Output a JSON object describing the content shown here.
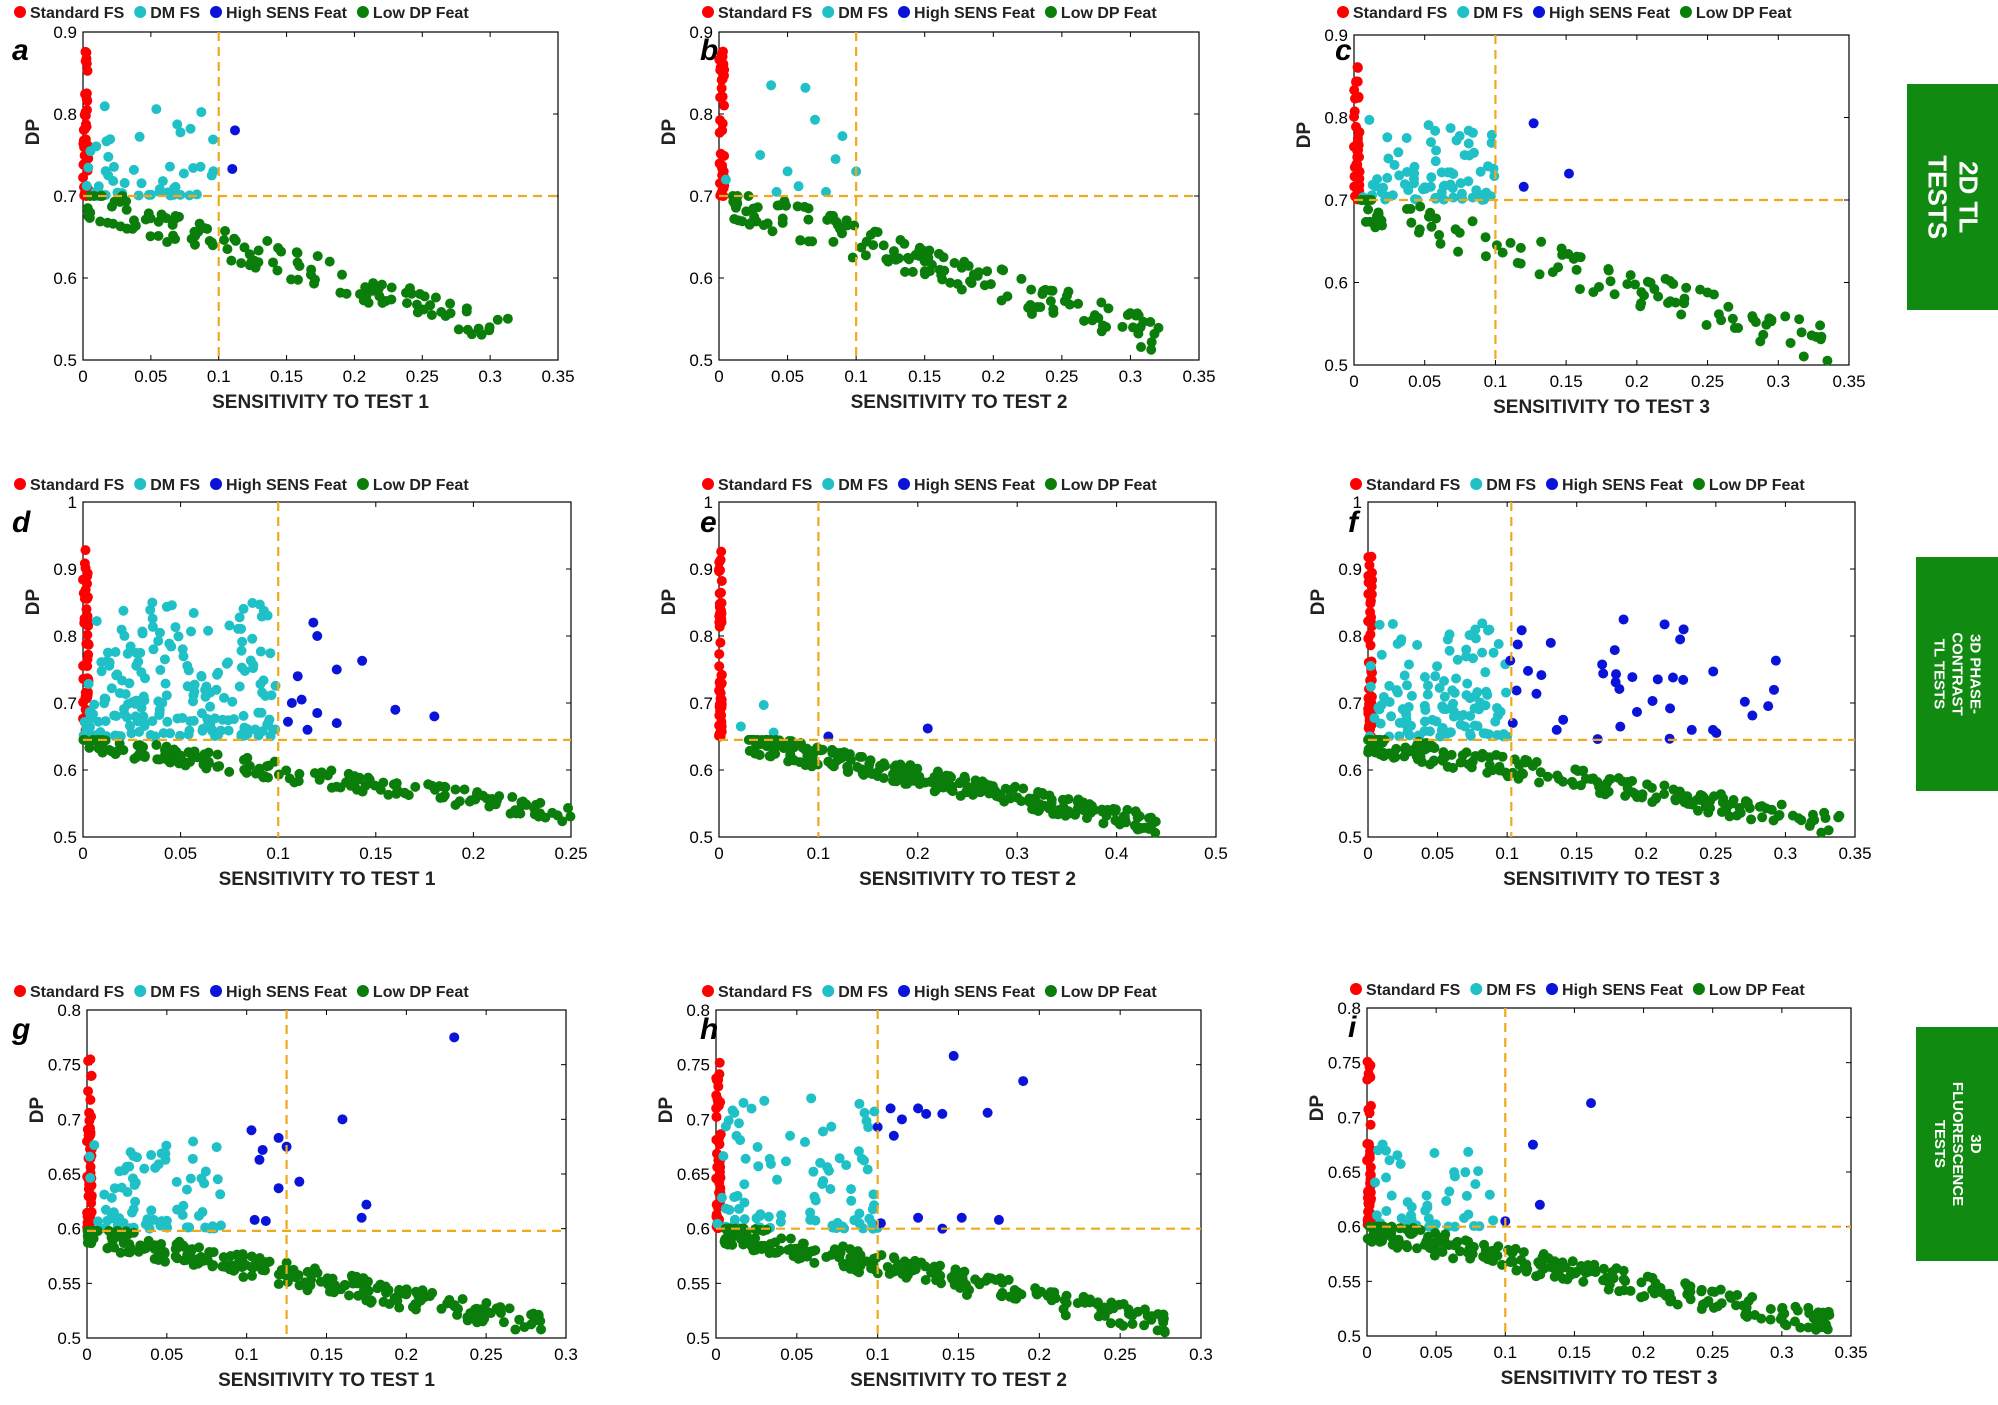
{
  "colors": {
    "standard_fs": "#ff0000",
    "dm_fs": "#1fc0c6",
    "high_sens": "#0a14d8",
    "low_dp": "#0a7d0a",
    "threshold": "#f0a91c",
    "row_label_bg": "#118a11"
  },
  "legend": {
    "standard": "Standard FS",
    "dm": "DM FS",
    "high": "High SENS Feat",
    "low": "Low DP Feat"
  },
  "row_labels": [
    {
      "text": "2D TL TESTS"
    },
    {
      "text": "3D PHASE-CONTRAST TL TESTS"
    },
    {
      "text": "3D FLUORESCENCE TESTS"
    }
  ],
  "chart_data": [
    {
      "id": "a",
      "type": "scatter",
      "title": "a",
      "xlabel": "SENSITIVITY TO TEST 1",
      "ylabel": "DP",
      "xlim": [
        0,
        0.35
      ],
      "ylim": [
        0.5,
        0.9
      ],
      "xticks": [
        "0",
        "0.05",
        "0.1",
        "0.15",
        "0.2",
        "0.25",
        "0.3",
        "0.35"
      ],
      "yticks": [
        "0.5",
        "0.6",
        "0.7",
        "0.8",
        "0.9"
      ],
      "threshold_x": 0.1,
      "threshold_y": 0.7,
      "series": [
        {
          "name": "Standard FS",
          "color": "#ff0000",
          "approx_count": 40,
          "x_range": [
            0,
            0.004
          ],
          "y_range": [
            0.7,
            0.88
          ]
        },
        {
          "name": "DM FS",
          "color": "#1fc0c6",
          "approx_count": 50,
          "x_range": [
            0,
            0.1
          ],
          "y_range": [
            0.7,
            0.815
          ]
        },
        {
          "name": "High SENS Feat",
          "color": "#0a14d8",
          "points": [
            [
              0.112,
              0.78
            ],
            [
              0.11,
              0.733
            ]
          ]
        },
        {
          "name": "Low DP Feat",
          "color": "#0a7d0a",
          "approx_count": 130,
          "x_range": [
            0.002,
            0.315
          ],
          "y_range": [
            0.515,
            0.7
          ]
        }
      ]
    },
    {
      "id": "b",
      "type": "scatter",
      "title": "b",
      "xlabel": "SENSITIVITY TO TEST 2",
      "ylabel": "DP",
      "xlim": [
        0,
        0.35
      ],
      "ylim": [
        0.5,
        0.9
      ],
      "xticks": [
        "0",
        "0.05",
        "0.1",
        "0.15",
        "0.2",
        "0.25",
        "0.3",
        "0.35"
      ],
      "yticks": [
        "0.5",
        "0.6",
        "0.7",
        "0.8",
        "0.9"
      ],
      "threshold_x": 0.1,
      "threshold_y": 0.7,
      "series": [
        {
          "name": "Standard FS",
          "color": "#ff0000",
          "approx_count": 40,
          "x_range": [
            0,
            0.004
          ],
          "y_range": [
            0.7,
            0.88
          ]
        },
        {
          "name": "DM FS",
          "color": "#1fc0c6",
          "points": [
            [
              0.038,
              0.835
            ],
            [
              0.063,
              0.832
            ],
            [
              0.07,
              0.793
            ],
            [
              0.09,
              0.773
            ],
            [
              0.03,
              0.75
            ],
            [
              0.05,
              0.73
            ],
            [
              0.085,
              0.745
            ],
            [
              0.005,
              0.72
            ],
            [
              0.1,
              0.73
            ],
            [
              0.058,
              0.712
            ],
            [
              0.042,
              0.705
            ],
            [
              0.078,
              0.705
            ]
          ]
        },
        {
          "name": "Low DP Feat",
          "color": "#0a7d0a",
          "approx_count": 150,
          "x_range": [
            0.01,
            0.33
          ],
          "y_range": [
            0.5,
            0.7
          ]
        }
      ]
    },
    {
      "id": "c",
      "type": "scatter",
      "title": "c",
      "xlabel": "SENSITIVITY TO TEST 3",
      "ylabel": "DP",
      "xlim": [
        0,
        0.35
      ],
      "ylim": [
        0.5,
        0.9
      ],
      "xticks": [
        "0",
        "0.05",
        "0.1",
        "0.15",
        "0.2",
        "0.25",
        "0.3",
        "0.35"
      ],
      "yticks": [
        "0.5",
        "0.6",
        "0.7",
        "0.8",
        "0.9"
      ],
      "threshold_x": 0.1,
      "threshold_y": 0.7,
      "series": [
        {
          "name": "Standard FS",
          "color": "#ff0000",
          "approx_count": 40,
          "x_range": [
            0,
            0.004
          ],
          "y_range": [
            0.7,
            0.88
          ]
        },
        {
          "name": "DM FS",
          "color": "#1fc0c6",
          "approx_count": 80,
          "x_range": [
            0.003,
            0.1
          ],
          "y_range": [
            0.7,
            0.8
          ]
        },
        {
          "name": "High SENS Feat",
          "color": "#0a14d8",
          "points": [
            [
              0.127,
              0.793
            ],
            [
              0.152,
              0.732
            ],
            [
              0.12,
              0.716
            ]
          ]
        },
        {
          "name": "Low DP Feat",
          "color": "#0a7d0a",
          "approx_count": 110,
          "x_range": [
            0.005,
            0.335
          ],
          "y_range": [
            0.5,
            0.7
          ]
        }
      ]
    },
    {
      "id": "d",
      "type": "scatter",
      "title": "d",
      "xlabel": "SENSITIVITY TO TEST 1",
      "ylabel": "DP",
      "xlim": [
        0,
        0.25
      ],
      "ylim": [
        0.5,
        1.0
      ],
      "xticks": [
        "0",
        "0.05",
        "0.1",
        "0.15",
        "0.2",
        "0.25"
      ],
      "yticks": [
        "0.5",
        "0.6",
        "0.7",
        "0.8",
        "0.9",
        "1"
      ],
      "threshold_x": 0.1,
      "threshold_y": 0.645,
      "series": [
        {
          "name": "Standard FS",
          "color": "#ff0000",
          "approx_count": 60,
          "x_range": [
            0,
            0.003
          ],
          "y_range": [
            0.65,
            0.93
          ]
        },
        {
          "name": "DM FS",
          "color": "#1fc0c6",
          "approx_count": 200,
          "x_range": [
            0,
            0.1
          ],
          "y_range": [
            0.65,
            0.85
          ]
        },
        {
          "name": "High SENS Feat",
          "color": "#0a14d8",
          "points": [
            [
              0.118,
              0.82
            ],
            [
              0.12,
              0.8
            ],
            [
              0.13,
              0.75
            ],
            [
              0.11,
              0.74
            ],
            [
              0.143,
              0.763
            ],
            [
              0.16,
              0.69
            ],
            [
              0.18,
              0.68
            ],
            [
              0.107,
              0.7
            ],
            [
              0.12,
              0.685
            ],
            [
              0.112,
              0.705
            ],
            [
              0.105,
              0.672
            ],
            [
              0.13,
              0.67
            ],
            [
              0.115,
              0.66
            ]
          ]
        },
        {
          "name": "Low DP Feat",
          "color": "#0a7d0a",
          "approx_count": 170,
          "x_range": [
            0,
            0.25
          ],
          "y_range": [
            0.52,
            0.645
          ]
        }
      ]
    },
    {
      "id": "e",
      "type": "scatter",
      "title": "e",
      "xlabel": "SENSITIVITY TO TEST 2",
      "ylabel": "DP",
      "xlim": [
        0,
        0.5
      ],
      "ylim": [
        0.5,
        1.0
      ],
      "xticks": [
        "0",
        "0.1",
        "0.2",
        "0.3",
        "0.4",
        "0.5"
      ],
      "yticks": [
        "0.5",
        "0.6",
        "0.7",
        "0.8",
        "0.9",
        "1"
      ],
      "threshold_x": 0.1,
      "threshold_y": 0.645,
      "series": [
        {
          "name": "Standard FS",
          "color": "#ff0000",
          "approx_count": 60,
          "x_range": [
            0,
            0.003
          ],
          "y_range": [
            0.65,
            0.93
          ]
        },
        {
          "name": "DM FS",
          "color": "#1fc0c6",
          "points": [
            [
              0.045,
              0.697
            ],
            [
              0.022,
              0.665
            ],
            [
              0.055,
              0.656
            ]
          ]
        },
        {
          "name": "High SENS Feat",
          "color": "#0a14d8",
          "points": [
            [
              0.21,
              0.662
            ],
            [
              0.11,
              0.65
            ]
          ]
        },
        {
          "name": "Low DP Feat",
          "color": "#0a7d0a",
          "approx_count": 280,
          "x_range": [
            0.03,
            0.44
          ],
          "y_range": [
            0.5,
            0.645
          ]
        }
      ]
    },
    {
      "id": "f",
      "type": "scatter",
      "title": "f",
      "xlabel": "SENSITIVITY TO TEST 3",
      "ylabel": "DP",
      "xlim": [
        0,
        0.35
      ],
      "ylim": [
        0.5,
        1.0
      ],
      "xticks": [
        "0",
        "0.05",
        "0.1",
        "0.15",
        "0.2",
        "0.25",
        "0.3",
        "0.35"
      ],
      "yticks": [
        "0.5",
        "0.6",
        "0.7",
        "0.8",
        "0.9",
        "1"
      ],
      "threshold_x": 0.103,
      "threshold_y": 0.645,
      "series": [
        {
          "name": "Standard FS",
          "color": "#ff0000",
          "approx_count": 60,
          "x_range": [
            0,
            0.003
          ],
          "y_range": [
            0.65,
            0.93
          ]
        },
        {
          "name": "DM FS",
          "color": "#1fc0c6",
          "approx_count": 120,
          "x_range": [
            0,
            0.1
          ],
          "y_range": [
            0.65,
            0.82
          ]
        },
        {
          "name": "High SENS Feat",
          "color": "#0a14d8",
          "approx_count": 40,
          "x_range": [
            0.1,
            0.3
          ],
          "y_range": [
            0.645,
            0.825
          ]
        },
        {
          "name": "Low DP Feat",
          "color": "#0a7d0a",
          "approx_count": 200,
          "x_range": [
            0,
            0.34
          ],
          "y_range": [
            0.5,
            0.645
          ]
        }
      ]
    },
    {
      "id": "g",
      "type": "scatter",
      "title": "g",
      "xlabel": "SENSITIVITY TO TEST 1",
      "ylabel": "DP",
      "xlim": [
        0,
        0.3
      ],
      "ylim": [
        0.5,
        0.8
      ],
      "xticks": [
        "0",
        "0.05",
        "0.1",
        "0.15",
        "0.2",
        "0.25",
        "0.3"
      ],
      "yticks": [
        "0.5",
        "0.55",
        "0.6",
        "0.65",
        "0.7",
        "0.75",
        "0.8"
      ],
      "threshold_x": 0.125,
      "threshold_y": 0.598,
      "series": [
        {
          "name": "Standard FS",
          "color": "#ff0000",
          "approx_count": 50,
          "x_range": [
            0,
            0.003
          ],
          "y_range": [
            0.6,
            0.755
          ]
        },
        {
          "name": "DM FS",
          "color": "#1fc0c6",
          "approx_count": 80,
          "x_range": [
            0,
            0.085
          ],
          "y_range": [
            0.6,
            0.68
          ]
        },
        {
          "name": "High SENS Feat",
          "color": "#0a14d8",
          "points": [
            [
              0.23,
              0.775
            ],
            [
              0.16,
              0.7
            ],
            [
              0.103,
              0.69
            ],
            [
              0.12,
              0.683
            ],
            [
              0.11,
              0.672
            ],
            [
              0.125,
              0.675
            ],
            [
              0.108,
              0.663
            ],
            [
              0.133,
              0.643
            ],
            [
              0.12,
              0.637
            ],
            [
              0.175,
              0.622
            ],
            [
              0.172,
              0.61
            ],
            [
              0.105,
              0.608
            ],
            [
              0.112,
              0.607
            ]
          ]
        },
        {
          "name": "Low DP Feat",
          "color": "#0a7d0a",
          "approx_count": 240,
          "x_range": [
            0,
            0.285
          ],
          "y_range": [
            0.5,
            0.598
          ]
        }
      ]
    },
    {
      "id": "h",
      "type": "scatter",
      "title": "h",
      "xlabel": "SENSITIVITY TO TEST 2",
      "ylabel": "DP",
      "xlim": [
        0,
        0.3
      ],
      "ylim": [
        0.5,
        0.8
      ],
      "xticks": [
        "0",
        "0.05",
        "0.1",
        "0.15",
        "0.2",
        "0.25",
        "0.3"
      ],
      "yticks": [
        "0.5",
        "0.55",
        "0.6",
        "0.65",
        "0.7",
        "0.75",
        "0.8"
      ],
      "threshold_x": 0.1,
      "threshold_y": 0.6,
      "series": [
        {
          "name": "Standard FS",
          "color": "#ff0000",
          "approx_count": 50,
          "x_range": [
            0,
            0.003
          ],
          "y_range": [
            0.6,
            0.755
          ]
        },
        {
          "name": "DM FS",
          "color": "#1fc0c6",
          "approx_count": 90,
          "x_range": [
            0,
            0.1
          ],
          "y_range": [
            0.6,
            0.72
          ]
        },
        {
          "name": "High SENS Feat",
          "color": "#0a14d8",
          "points": [
            [
              0.147,
              0.758
            ],
            [
              0.19,
              0.735
            ],
            [
              0.1,
              0.693
            ],
            [
              0.115,
              0.7
            ],
            [
              0.108,
              0.71
            ],
            [
              0.125,
              0.71
            ],
            [
              0.13,
              0.705
            ],
            [
              0.11,
              0.685
            ],
            [
              0.14,
              0.705
            ],
            [
              0.168,
              0.706
            ],
            [
              0.102,
              0.605
            ],
            [
              0.125,
              0.61
            ],
            [
              0.152,
              0.61
            ],
            [
              0.175,
              0.608
            ],
            [
              0.14,
              0.6
            ]
          ]
        },
        {
          "name": "Low DP Feat",
          "color": "#0a7d0a",
          "approx_count": 240,
          "x_range": [
            0.005,
            0.28
          ],
          "y_range": [
            0.5,
            0.6
          ]
        }
      ]
    },
    {
      "id": "i",
      "type": "scatter",
      "title": "i",
      "xlabel": "SENSITIVITY TO TEST 3",
      "ylabel": "DP",
      "xlim": [
        0,
        0.35
      ],
      "ylim": [
        0.5,
        0.8
      ],
      "xticks": [
        "0",
        "0.05",
        "0.1",
        "0.15",
        "0.2",
        "0.25",
        "0.3",
        "0.35"
      ],
      "yticks": [
        "0.5",
        "0.55",
        "0.6",
        "0.65",
        "0.7",
        "0.75",
        "0.8"
      ],
      "threshold_x": 0.1,
      "threshold_y": 0.6,
      "series": [
        {
          "name": "Standard FS",
          "color": "#ff0000",
          "approx_count": 50,
          "x_range": [
            0,
            0.003
          ],
          "y_range": [
            0.6,
            0.755
          ]
        },
        {
          "name": "DM FS",
          "color": "#1fc0c6",
          "approx_count": 45,
          "x_range": [
            0.005,
            0.1
          ],
          "y_range": [
            0.6,
            0.68
          ]
        },
        {
          "name": "High SENS Feat",
          "color": "#0a14d8",
          "points": [
            [
              0.162,
              0.713
            ],
            [
              0.12,
              0.675
            ],
            [
              0.125,
              0.62
            ],
            [
              0.1,
              0.605
            ]
          ]
        },
        {
          "name": "Low DP Feat",
          "color": "#0a7d0a",
          "approx_count": 240,
          "x_range": [
            0,
            0.335
          ],
          "y_range": [
            0.5,
            0.6
          ]
        }
      ]
    }
  ]
}
